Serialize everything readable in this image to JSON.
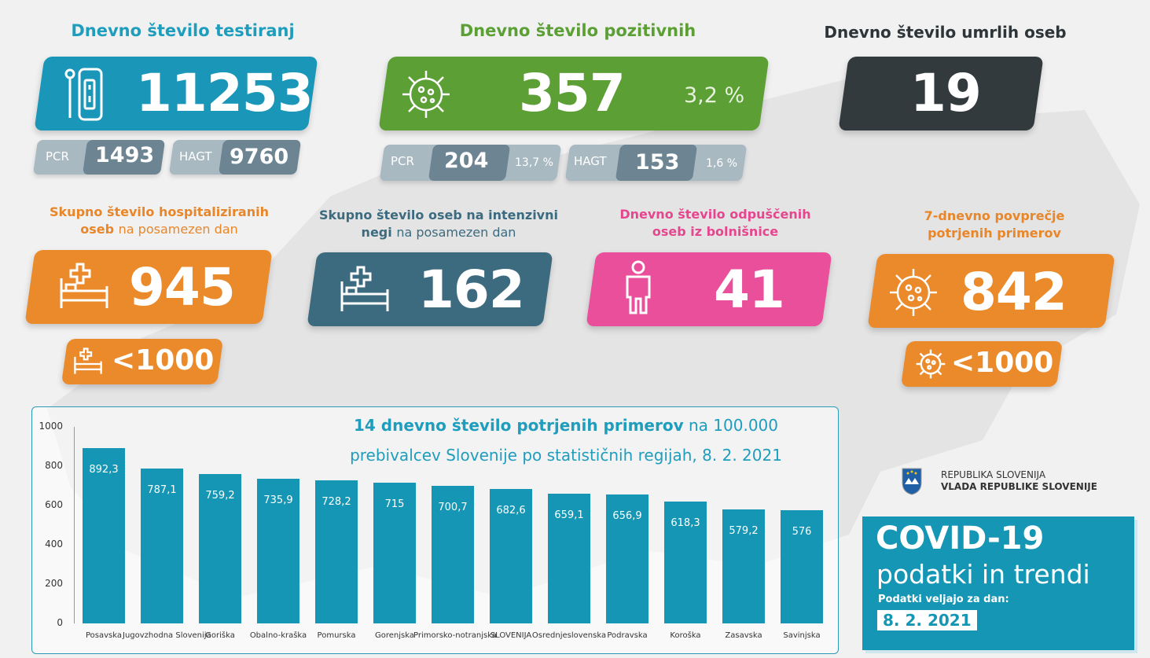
{
  "colors": {
    "blue": "#1a97b8",
    "green": "#5b9f35",
    "dark": "#323a3d",
    "orange": "#ea8a2b",
    "slate": "#3c6b80",
    "pink": "#e94f9a",
    "teal_title": "#1f9dbd",
    "orange_title": "#e8862a",
    "pink_title": "#e5478f"
  },
  "tests": {
    "title": "Dnevno število testiranj",
    "value": "11253",
    "pcr_label": "PCR",
    "pcr_value": "1493",
    "hagt_label": "HAGT",
    "hagt_value": "9760",
    "icon": "test-tube-icon"
  },
  "positive": {
    "title": "Dnevno število pozitivnih",
    "value": "357",
    "percent": "3,2 %",
    "pcr_label": "PCR",
    "pcr_value": "204",
    "pcr_percent": "13,7 %",
    "hagt_label": "HAGT",
    "hagt_value": "153",
    "hagt_percent": "1,6 %",
    "icon": "virus-icon"
  },
  "deaths": {
    "title": "Dnevno število umrlih oseb",
    "value": "19"
  },
  "hospitalized": {
    "title_bold1": "Skupno število hospitaliziranih",
    "title_bold2": "oseb",
    "title_light": "na posamezen dan",
    "value": "945",
    "threshold": "<1000",
    "icon": "hospital-bed-icon"
  },
  "icu": {
    "title_bold1": "Skupno število oseb na intenzivni",
    "title_bold2": "negi",
    "title_light": "na posamezen dan",
    "value": "162",
    "icon": "hospital-bed-icon"
  },
  "discharged": {
    "title_line1": "Dnevno število odpuščenih",
    "title_line2": "oseb iz bolnišnice",
    "value": "41",
    "icon": "patient-icon"
  },
  "avg7": {
    "title_line1": "7-dnevno povprečje",
    "title_line2": "potrjenih primerov",
    "value": "842",
    "threshold": "<1000",
    "icon": "virus-icon"
  },
  "government": {
    "line1": "REPUBLIKA SLOVENIJA",
    "line2": "VLADA REPUBLIKE SLOVENIJE",
    "icon": "coat-of-arms-icon"
  },
  "covid_box": {
    "title": "COVID-19",
    "subtitle": "podatki in trendi",
    "valid_label": "Podatki veljajo za dan:",
    "date": "8. 2. 2021"
  },
  "chart_data": {
    "type": "bar",
    "title_bold": "14 dnevno število potrjenih primerov",
    "title_rest": "na 100.000",
    "title_line2": "prebivalcev Slovenije po statističnih regijah, 8. 2. 2021",
    "categories": [
      "Posavska",
      "Jugovzhodna Slovenija",
      "Goriška",
      "Obalno-kraška",
      "Pomurska",
      "Gorenjska",
      "Primorsko-notranjska",
      "SLOVENIJA",
      "Osrednjeslovenska",
      "Podravska",
      "Koroška",
      "Zasavska",
      "Savinjska"
    ],
    "values": [
      892.3,
      787.1,
      759.2,
      735.9,
      728.2,
      715,
      700.7,
      682.6,
      659.1,
      656.9,
      618.3,
      579.2,
      576
    ],
    "value_labels": [
      "892,3",
      "787,1",
      "759,2",
      "735,9",
      "728,2",
      "715",
      "700,7",
      "682,6",
      "659,1",
      "656,9",
      "618,3",
      "579,2",
      "576"
    ],
    "yticks": [
      "0",
      "200",
      "400",
      "600",
      "800",
      "1000"
    ],
    "ylim": [
      0,
      1000
    ],
    "grid": false,
    "color": "#1596b4"
  }
}
